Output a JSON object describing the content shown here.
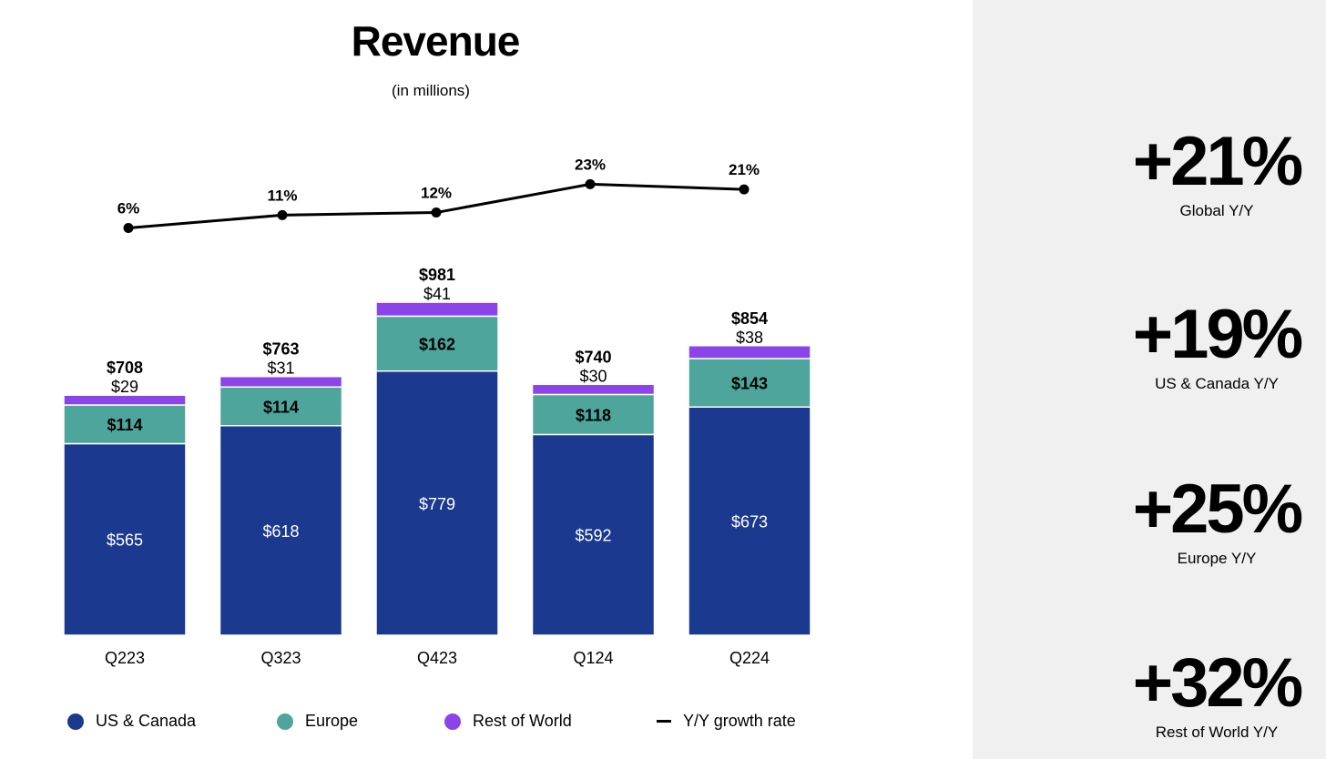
{
  "chart_data": {
    "type": "bar",
    "stacked": true,
    "title": "Revenue",
    "subtitle": "(in millions)",
    "categories": [
      "Q223",
      "Q323",
      "Q423",
      "Q124",
      "Q224"
    ],
    "series": [
      {
        "name": "US & Canada",
        "values": [
          565,
          618,
          779,
          592,
          673
        ],
        "labels": [
          "$565",
          "$618",
          "$779",
          "$592",
          "$673"
        ],
        "color": "#1b3a8f"
      },
      {
        "name": "Europe",
        "values": [
          114,
          114,
          162,
          118,
          143
        ],
        "labels": [
          "$114",
          "$114",
          "$162",
          "$118",
          "$143"
        ],
        "color": "#4ea59c"
      },
      {
        "name": "Rest of World",
        "values": [
          29,
          31,
          41,
          30,
          38
        ],
        "labels": [
          "$29",
          "$31",
          "$41",
          "$30",
          "$38"
        ],
        "color": "#8a44ea"
      }
    ],
    "totals": [
      708,
      763,
      981,
      740,
      854
    ],
    "total_labels": [
      "$708",
      "$763",
      "$981",
      "$740",
      "$854"
    ],
    "growth": {
      "name": "Y/Y growth rate",
      "type": "line",
      "values": [
        6,
        11,
        12,
        23,
        21
      ],
      "labels": [
        "6%",
        "11%",
        "12%",
        "23%",
        "21%"
      ],
      "color": "#000000"
    },
    "grid": false,
    "legend_position": "bottom"
  },
  "legend": {
    "items": [
      {
        "label": "US & Canada",
        "color": "#1b3a8f",
        "kind": "dot"
      },
      {
        "label": "Europe",
        "color": "#4ea59c",
        "kind": "dot"
      },
      {
        "label": "Rest of World",
        "color": "#8a44ea",
        "kind": "dot"
      },
      {
        "label": "Y/Y growth rate",
        "color": "#000000",
        "kind": "line"
      }
    ]
  },
  "kpis": [
    {
      "value": "+21%",
      "label": "Global Y/Y"
    },
    {
      "value": "+19%",
      "label": "US & Canada Y/Y"
    },
    {
      "value": "+25%",
      "label": "Europe Y/Y"
    },
    {
      "value": "+32%",
      "label": "Rest of World Y/Y"
    }
  ]
}
